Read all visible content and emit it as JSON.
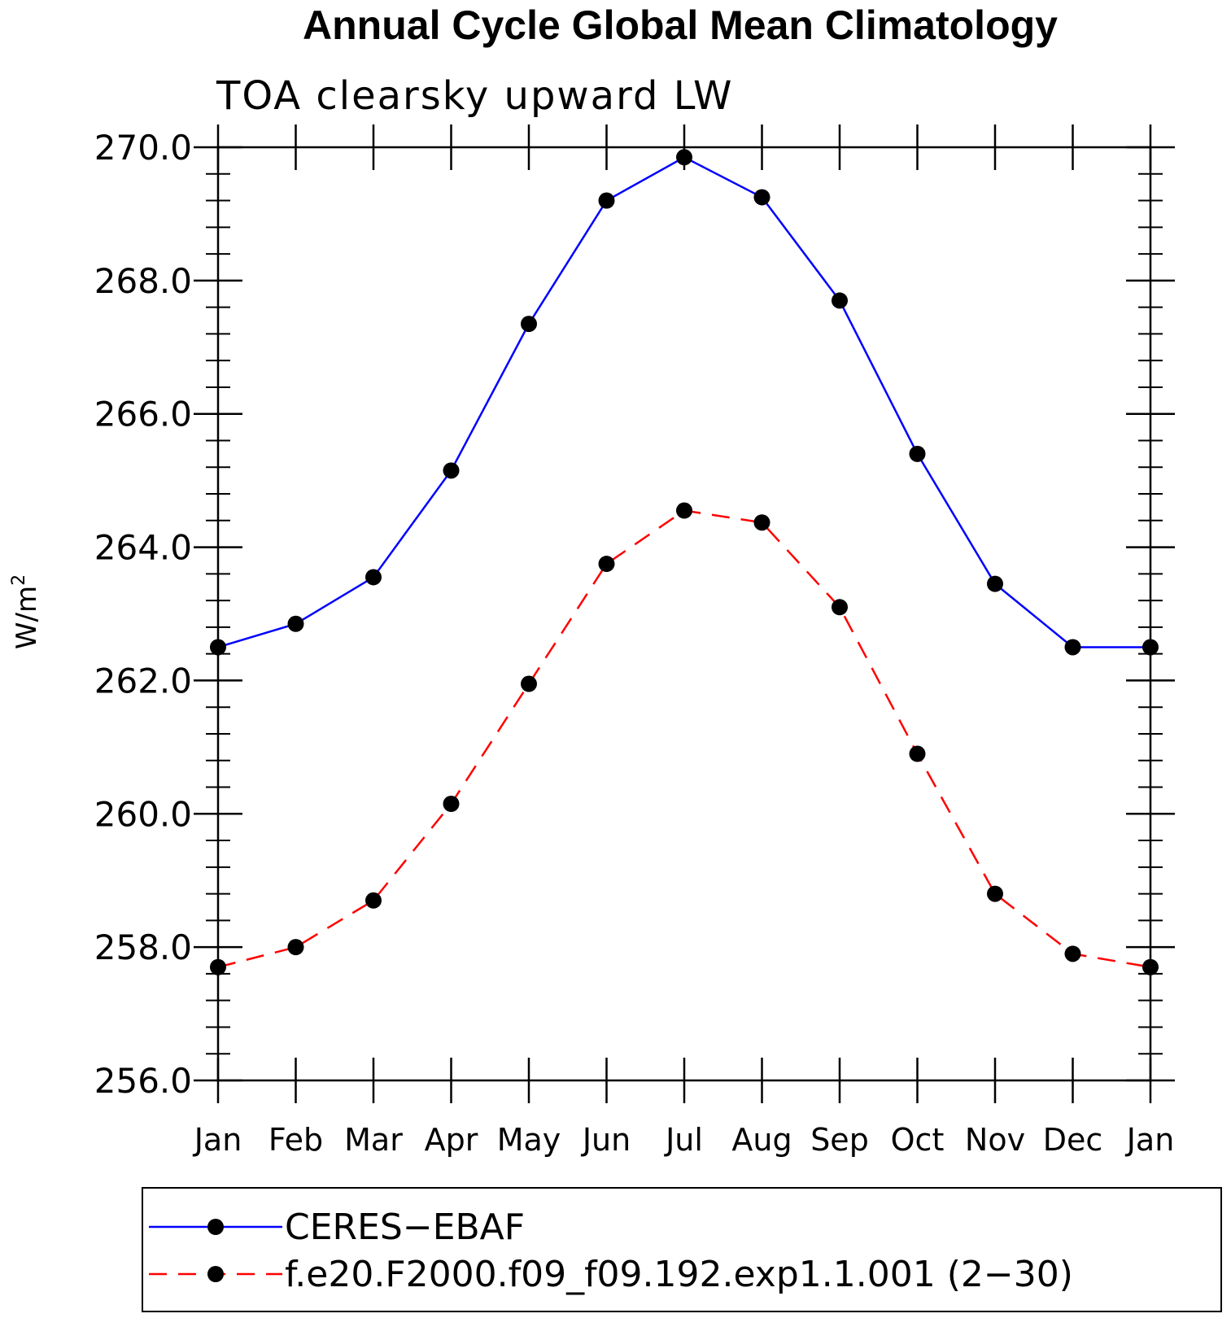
{
  "chart_data": {
    "type": "line",
    "title": "Annual Cycle Global Mean Climatology",
    "subtitle": "TOA clearsky upward LW",
    "ylabel": "W/m",
    "ylabel_sup": "2",
    "ylim": [
      256,
      270
    ],
    "y_ticks": [
      "256.0",
      "258.0",
      "260.0",
      "262.0",
      "264.0",
      "266.0",
      "268.0",
      "270.0"
    ],
    "categories": [
      "Jan",
      "Feb",
      "Mar",
      "Apr",
      "May",
      "Jun",
      "Jul",
      "Aug",
      "Sep",
      "Oct",
      "Nov",
      "Dec",
      "Jan"
    ],
    "series": [
      {
        "name": "CERES−EBAF",
        "color": "#0000ff",
        "line_style": "solid",
        "values": [
          262.5,
          262.85,
          263.55,
          265.15,
          267.35,
          269.2,
          269.85,
          269.25,
          267.7,
          265.4,
          263.45,
          262.5,
          262.5
        ]
      },
      {
        "name": "f.e20.F2000.f09_f09.192.exp1.1.001 (2−30)",
        "color": "#ff0000",
        "line_style": "dashed",
        "values": [
          257.7,
          258.0,
          258.7,
          260.15,
          261.95,
          263.75,
          264.55,
          264.37,
          263.1,
          260.9,
          258.8,
          257.9,
          257.7
        ]
      }
    ],
    "grid": false,
    "legend_position": "bottom"
  }
}
